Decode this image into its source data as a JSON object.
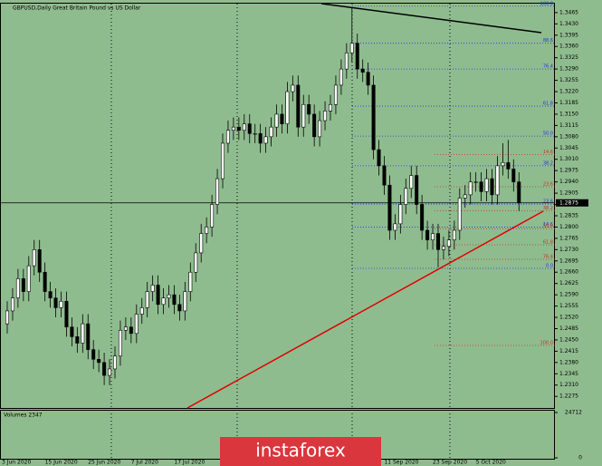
{
  "chart_data": {
    "type": "candlestick",
    "title": "GBPUSD,Daily  Great Britain Pound vs US Dollar",
    "ylim": [
      1.2239,
      1.349
    ],
    "yticks": [
      1.3465,
      {
        "value": 1.343,
        "label": "1.3430"
      },
      1.3395,
      {
        "value": 1.336,
        "label": "1.3360"
      },
      1.3325,
      {
        "value": 1.329,
        "label": "1.3290"
      },
      1.3255,
      {
        "value": 1.322,
        "label": "1.3220"
      },
      1.3185,
      {
        "value": 1.315,
        "label": "1.3150"
      },
      1.3115,
      {
        "value": 1.308,
        "label": "1.3080"
      },
      1.3045,
      {
        "value": 1.301,
        "label": "1.3010"
      },
      1.2975,
      {
        "value": 1.294,
        "label": "1.2940"
      },
      1.2905,
      {
        "value": 1.287,
        "label": "1.2870"
      },
      1.2835,
      {
        "value": 1.28,
        "label": "1.2800"
      },
      1.2765,
      {
        "value": 1.273,
        "label": "1.2730"
      },
      1.2695,
      {
        "value": 1.266,
        "label": "1.2660"
      },
      1.2625,
      {
        "value": 1.259,
        "label": "1.2590"
      },
      1.2555,
      {
        "value": 1.252,
        "label": "1.2520"
      },
      1.2485,
      {
        "value": 1.245,
        "label": "1.2450"
      },
      1.2415,
      {
        "value": 1.238,
        "label": "1.2380"
      },
      1.2345,
      {
        "value": 1.231,
        "label": "1.2310"
      },
      1.2275
    ],
    "categories": [
      "3 Jun 2020",
      null,
      null,
      null,
      null,
      null,
      null,
      null,
      "15 Jun 2020",
      null,
      null,
      null,
      null,
      null,
      null,
      null,
      "25 Jun 2020",
      null,
      null,
      null,
      null,
      null,
      null,
      null,
      "7 Jul 2020",
      null,
      null,
      null,
      null,
      null,
      null,
      null,
      "17 Jul 2020",
      null,
      null,
      null,
      null,
      null,
      null,
      null,
      null,
      null,
      null,
      null,
      null,
      null,
      null,
      null,
      null,
      null,
      null,
      null,
      null,
      null,
      null,
      null,
      null,
      null,
      null,
      null,
      null,
      null,
      null,
      null,
      null,
      null,
      null,
      null,
      null,
      null,
      null,
      "11 Sep 2020",
      null,
      null,
      null,
      null,
      null,
      null,
      null,
      null,
      "23 Sep 2020",
      null,
      null,
      null,
      null,
      null,
      null,
      null,
      "5 Oct 2020",
      null,
      null,
      null,
      null,
      null,
      null,
      null
    ],
    "candles": [
      [
        1.25,
        1.257,
        1.247,
        1.254
      ],
      [
        1.254,
        1.261,
        1.251,
        1.258
      ],
      [
        1.258,
        1.267,
        1.255,
        1.264
      ],
      [
        1.264,
        1.267,
        1.257,
        1.26
      ],
      [
        1.26,
        1.271,
        1.257,
        1.268
      ],
      [
        1.268,
        1.276,
        1.265,
        1.273
      ],
      [
        1.273,
        1.276,
        1.263,
        1.266
      ],
      [
        1.266,
        1.269,
        1.257,
        1.26
      ],
      [
        1.26,
        1.263,
        1.255,
        1.258
      ],
      [
        1.258,
        1.261,
        1.252,
        1.255
      ],
      [
        1.255,
        1.26,
        1.252,
        1.257
      ],
      [
        1.257,
        1.26,
        1.246,
        1.249
      ],
      [
        1.249,
        1.252,
        1.243,
        1.246
      ],
      [
        1.246,
        1.249,
        1.241,
        1.244
      ],
      [
        1.244,
        1.253,
        1.241,
        1.25
      ],
      [
        1.25,
        1.253,
        1.239,
        1.242
      ],
      [
        1.242,
        1.245,
        1.236,
        1.239
      ],
      [
        1.239,
        1.242,
        1.235,
        1.238
      ],
      [
        1.238,
        1.241,
        1.231,
        1.234
      ],
      [
        1.234,
        1.239,
        1.231,
        1.236
      ],
      [
        1.236,
        1.243,
        1.233,
        1.24
      ],
      [
        1.24,
        1.251,
        1.237,
        1.248
      ],
      [
        1.248,
        1.252,
        1.245,
        1.249
      ],
      [
        1.249,
        1.252,
        1.244,
        1.247
      ],
      [
        1.247,
        1.256,
        1.244,
        1.253
      ],
      [
        1.253,
        1.258,
        1.25,
        1.255
      ],
      [
        1.255,
        1.263,
        1.252,
        1.26
      ],
      [
        1.26,
        1.265,
        1.257,
        1.262
      ],
      [
        1.262,
        1.265,
        1.253,
        1.256
      ],
      [
        1.256,
        1.261,
        1.253,
        1.258
      ],
      [
        1.258,
        1.262,
        1.255,
        1.259
      ],
      [
        1.259,
        1.262,
        1.253,
        1.256
      ],
      [
        1.256,
        1.259,
        1.251,
        1.254
      ],
      [
        1.254,
        1.263,
        1.251,
        1.26
      ],
      [
        1.26,
        1.269,
        1.257,
        1.266
      ],
      [
        1.266,
        1.275,
        1.263,
        1.272
      ],
      [
        1.272,
        1.281,
        1.269,
        1.278
      ],
      [
        1.278,
        1.283,
        1.275,
        1.28
      ],
      [
        1.28,
        1.29,
        1.277,
        1.287
      ],
      [
        1.287,
        1.298,
        1.284,
        1.295
      ],
      [
        1.295,
        1.309,
        1.292,
        1.306
      ],
      [
        1.306,
        1.313,
        1.303,
        1.31
      ],
      [
        1.31,
        1.314,
        1.307,
        1.311
      ],
      [
        1.311,
        1.314,
        1.307,
        1.31
      ],
      [
        1.31,
        1.315,
        1.307,
        1.312
      ],
      [
        1.312,
        1.315,
        1.306,
        1.309
      ],
      [
        1.309,
        1.312,
        1.306,
        1.309
      ],
      [
        1.309,
        1.312,
        1.303,
        1.306
      ],
      [
        1.306,
        1.311,
        1.303,
        1.308
      ],
      [
        1.308,
        1.314,
        1.305,
        1.311
      ],
      [
        1.311,
        1.318,
        1.308,
        1.315
      ],
      [
        1.315,
        1.318,
        1.309,
        1.312
      ],
      [
        1.312,
        1.325,
        1.309,
        1.322
      ],
      [
        1.322,
        1.327,
        1.319,
        1.324
      ],
      [
        1.324,
        1.327,
        1.308,
        1.311
      ],
      [
        1.311,
        1.321,
        1.308,
        1.318
      ],
      [
        1.318,
        1.321,
        1.312,
        1.315
      ],
      [
        1.315,
        1.318,
        1.305,
        1.308
      ],
      [
        1.308,
        1.316,
        1.305,
        1.313
      ],
      [
        1.313,
        1.319,
        1.31,
        1.316
      ],
      [
        1.316,
        1.321,
        1.313,
        1.318
      ],
      [
        1.318,
        1.327,
        1.315,
        1.324
      ],
      [
        1.324,
        1.332,
        1.321,
        1.329
      ],
      [
        1.329,
        1.337,
        1.326,
        1.334
      ],
      [
        1.334,
        1.348,
        1.331,
        1.337
      ],
      [
        1.337,
        1.34,
        1.326,
        1.329
      ],
      [
        1.329,
        1.332,
        1.325,
        1.328
      ],
      [
        1.328,
        1.331,
        1.321,
        1.324
      ],
      [
        1.324,
        1.327,
        1.301,
        1.304
      ],
      [
        1.304,
        1.307,
        1.296,
        1.299
      ],
      [
        1.299,
        1.302,
        1.29,
        1.293
      ],
      [
        1.293,
        1.296,
        1.276,
        1.279
      ],
      [
        1.279,
        1.284,
        1.276,
        1.281
      ],
      [
        1.281,
        1.29,
        1.278,
        1.287
      ],
      [
        1.287,
        1.295,
        1.284,
        1.292
      ],
      [
        1.292,
        1.299,
        1.289,
        1.296
      ],
      [
        1.296,
        1.299,
        1.284,
        1.287
      ],
      [
        1.287,
        1.29,
        1.276,
        1.279
      ],
      [
        1.279,
        1.282,
        1.273,
        1.276
      ],
      [
        1.276,
        1.281,
        1.273,
        1.278
      ],
      [
        1.278,
        1.281,
        1.2675,
        1.273
      ],
      [
        1.273,
        1.277,
        1.27,
        1.274
      ],
      [
        1.274,
        1.279,
        1.271,
        1.276
      ],
      [
        1.276,
        1.282,
        1.273,
        1.279
      ],
      [
        1.279,
        1.292,
        1.276,
        1.289
      ],
      [
        1.289,
        1.293,
        1.286,
        1.29
      ],
      [
        1.29,
        1.297,
        1.287,
        1.294
      ],
      [
        1.294,
        1.297,
        1.291,
        1.294
      ],
      [
        1.294,
        1.297,
        1.288,
        1.291
      ],
      [
        1.291,
        1.298,
        1.288,
        1.295
      ],
      [
        1.295,
        1.298,
        1.287,
        1.29
      ],
      [
        1.29,
        1.302,
        1.287,
        1.299
      ],
      [
        1.299,
        1.306,
        1.296,
        1.3
      ],
      [
        1.3,
        1.307,
        1.295,
        1.298
      ],
      [
        1.298,
        1.301,
        1.291,
        1.294
      ],
      [
        1.294,
        1.297,
        1.285,
        1.2875
      ]
    ],
    "bull_color": "#ffffff",
    "bear_color": "#000000",
    "current_price": {
      "value": 1.2875,
      "label": "1.2875"
    },
    "fibonacci": [
      {
        "color": "#2038c8",
        "levels": [
          {
            "label": "100.0",
            "value": 1.3485
          },
          {
            "label": "88.6",
            "value": 1.337
          },
          {
            "label": "76.4",
            "value": 1.329
          },
          {
            "label": "61.8",
            "value": 1.3175
          },
          {
            "label": "50.0",
            "value": 1.3082
          },
          {
            "label": "38.2",
            "value": 1.299
          },
          {
            "label": "23.6",
            "value": 1.2871
          },
          {
            "label": "14.6",
            "value": 1.28
          },
          {
            "label": "0.0",
            "value": 1.2672
          }
        ]
      },
      {
        "color": "#c83020",
        "levels": [
          {
            "label": "14.6",
            "value": 1.3025
          },
          {
            "label": "23.6",
            "value": 1.2925
          },
          {
            "label": "38.2",
            "value": 1.285
          },
          {
            "label": "50.0",
            "value": 1.2795
          },
          {
            "label": "61.8",
            "value": 1.2745
          },
          {
            "label": "76.4",
            "value": 1.27
          },
          {
            "label": "100.0",
            "value": 1.2433
          }
        ]
      }
    ],
    "volume_title": "Volumes 2347",
    "volume_ticks": [
      0,
      24712
    ],
    "watermark": "instaforex"
  }
}
